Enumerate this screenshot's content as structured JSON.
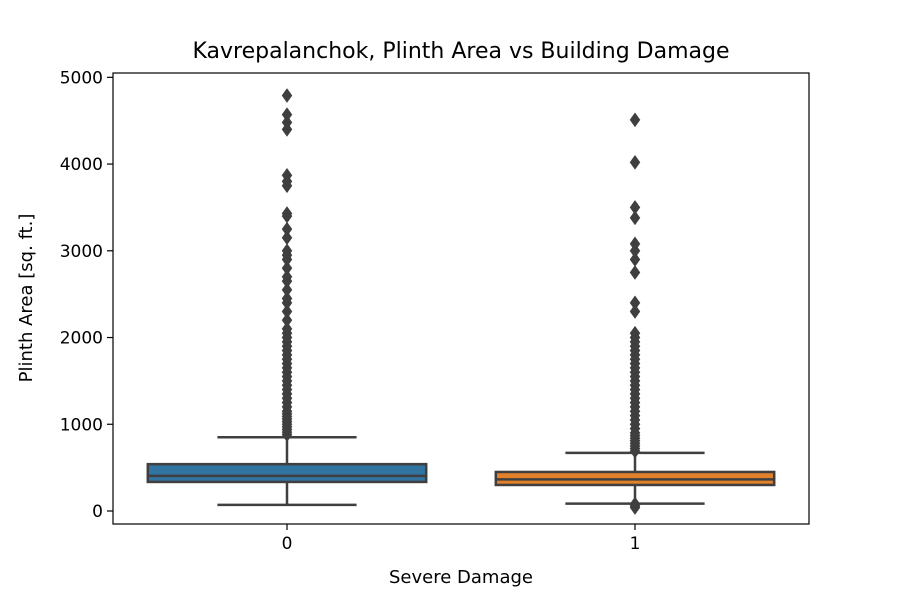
{
  "chart_data": {
    "type": "box",
    "title": "Kavrepalanchok, Plinth Area vs Building Damage",
    "xlabel": "Severe Damage",
    "ylabel": "Plinth Area [sq. ft.]",
    "ylim": [
      -150,
      5050
    ],
    "yticks": [
      0,
      1000,
      2000,
      3000,
      4000,
      5000
    ],
    "categories": [
      "0",
      "1"
    ],
    "grid": false,
    "series": [
      {
        "category": "0",
        "color": "#3274a1",
        "whisker_low": 70,
        "q1": 335,
        "median": 405,
        "q3": 540,
        "whisker_high": 850,
        "outliers": [
          880,
          910,
          940,
          970,
          1000,
          1030,
          1060,
          1090,
          1120,
          1150,
          1200,
          1250,
          1300,
          1350,
          1400,
          1450,
          1500,
          1550,
          1600,
          1650,
          1700,
          1750,
          1800,
          1850,
          1900,
          1950,
          2000,
          2050,
          2100,
          2200,
          2300,
          2400,
          2450,
          2550,
          2650,
          2700,
          2800,
          2900,
          2950,
          3000,
          3150,
          3250,
          3400,
          3430,
          3750,
          3800,
          3870,
          4400,
          4480,
          4570,
          4790
        ]
      },
      {
        "category": "1",
        "color": "#e1812c",
        "whisker_low": 85,
        "q1": 300,
        "median": 365,
        "q3": 450,
        "whisker_high": 670,
        "outliers": [
          40,
          60,
          80,
          690,
          720,
          750,
          780,
          810,
          840,
          870,
          900,
          950,
          1000,
          1050,
          1100,
          1150,
          1200,
          1250,
          1300,
          1350,
          1400,
          1450,
          1500,
          1550,
          1600,
          1650,
          1700,
          1750,
          1800,
          1850,
          1900,
          1950,
          2000,
          2050,
          2300,
          2400,
          2750,
          2900,
          3000,
          3080,
          3380,
          3500,
          4020,
          4510
        ]
      }
    ]
  }
}
